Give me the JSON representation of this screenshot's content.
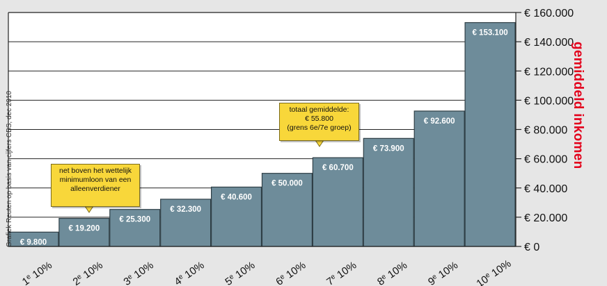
{
  "chart_data": {
    "type": "bar",
    "categories": [
      "1e 10%",
      "2e 10%",
      "3e 10%",
      "4e 10%",
      "5e 10%",
      "6e 10%",
      "7e 10%",
      "8e 10%",
      "9e 10%",
      "10e 10%"
    ],
    "category_numbers": [
      "1",
      "2",
      "3",
      "4",
      "5",
      "6",
      "7",
      "8",
      "9",
      "10"
    ],
    "category_suffix": "e",
    "category_tail": "10%",
    "values": [
      9800,
      19200,
      25300,
      32300,
      40600,
      50000,
      60700,
      73900,
      92600,
      153100
    ],
    "value_labels": [
      "€ 9.800",
      "€ 19.200",
      "€ 25.300",
      "€ 32.300",
      "€ 40.600",
      "€ 50.000",
      "€ 60.700",
      "€ 73.900",
      "€ 92.600",
      "€ 153.100"
    ],
    "ylabel": "gemiddeld inkomen",
    "ylim": [
      0,
      160000
    ],
    "yticks": [
      0,
      20000,
      40000,
      60000,
      80000,
      100000,
      120000,
      140000,
      160000
    ],
    "ytick_labels": [
      "€ 0",
      "€ 20.000",
      "€ 40.000",
      "€ 60.000",
      "€ 80.000",
      "€ 100.000",
      "€ 120.000",
      "€ 140.000",
      "€ 160.000"
    ],
    "y_axis_side": "right",
    "grid": true,
    "credit": "Grafiek Reuten op basis van cijfers CBS, dec 2010",
    "annotations": [
      {
        "lines": [
          "net boven het wettelijk",
          "minimumloon van een",
          "alleenverdiener"
        ],
        "points_to_category": "2e 10%"
      },
      {
        "lines": [
          "totaal gemiddelde:",
          "€ 55.800",
          "(grens 6e/7e groep)"
        ],
        "points_to_category": "7e 10%"
      }
    ],
    "colors": {
      "bar": "#6e8c9a",
      "bar_edge": "#2f3f46",
      "background": "#e6e6e6",
      "plot_background": "#ffffff",
      "callout": "#f8d73a",
      "ylabel": "#e3001b"
    }
  }
}
